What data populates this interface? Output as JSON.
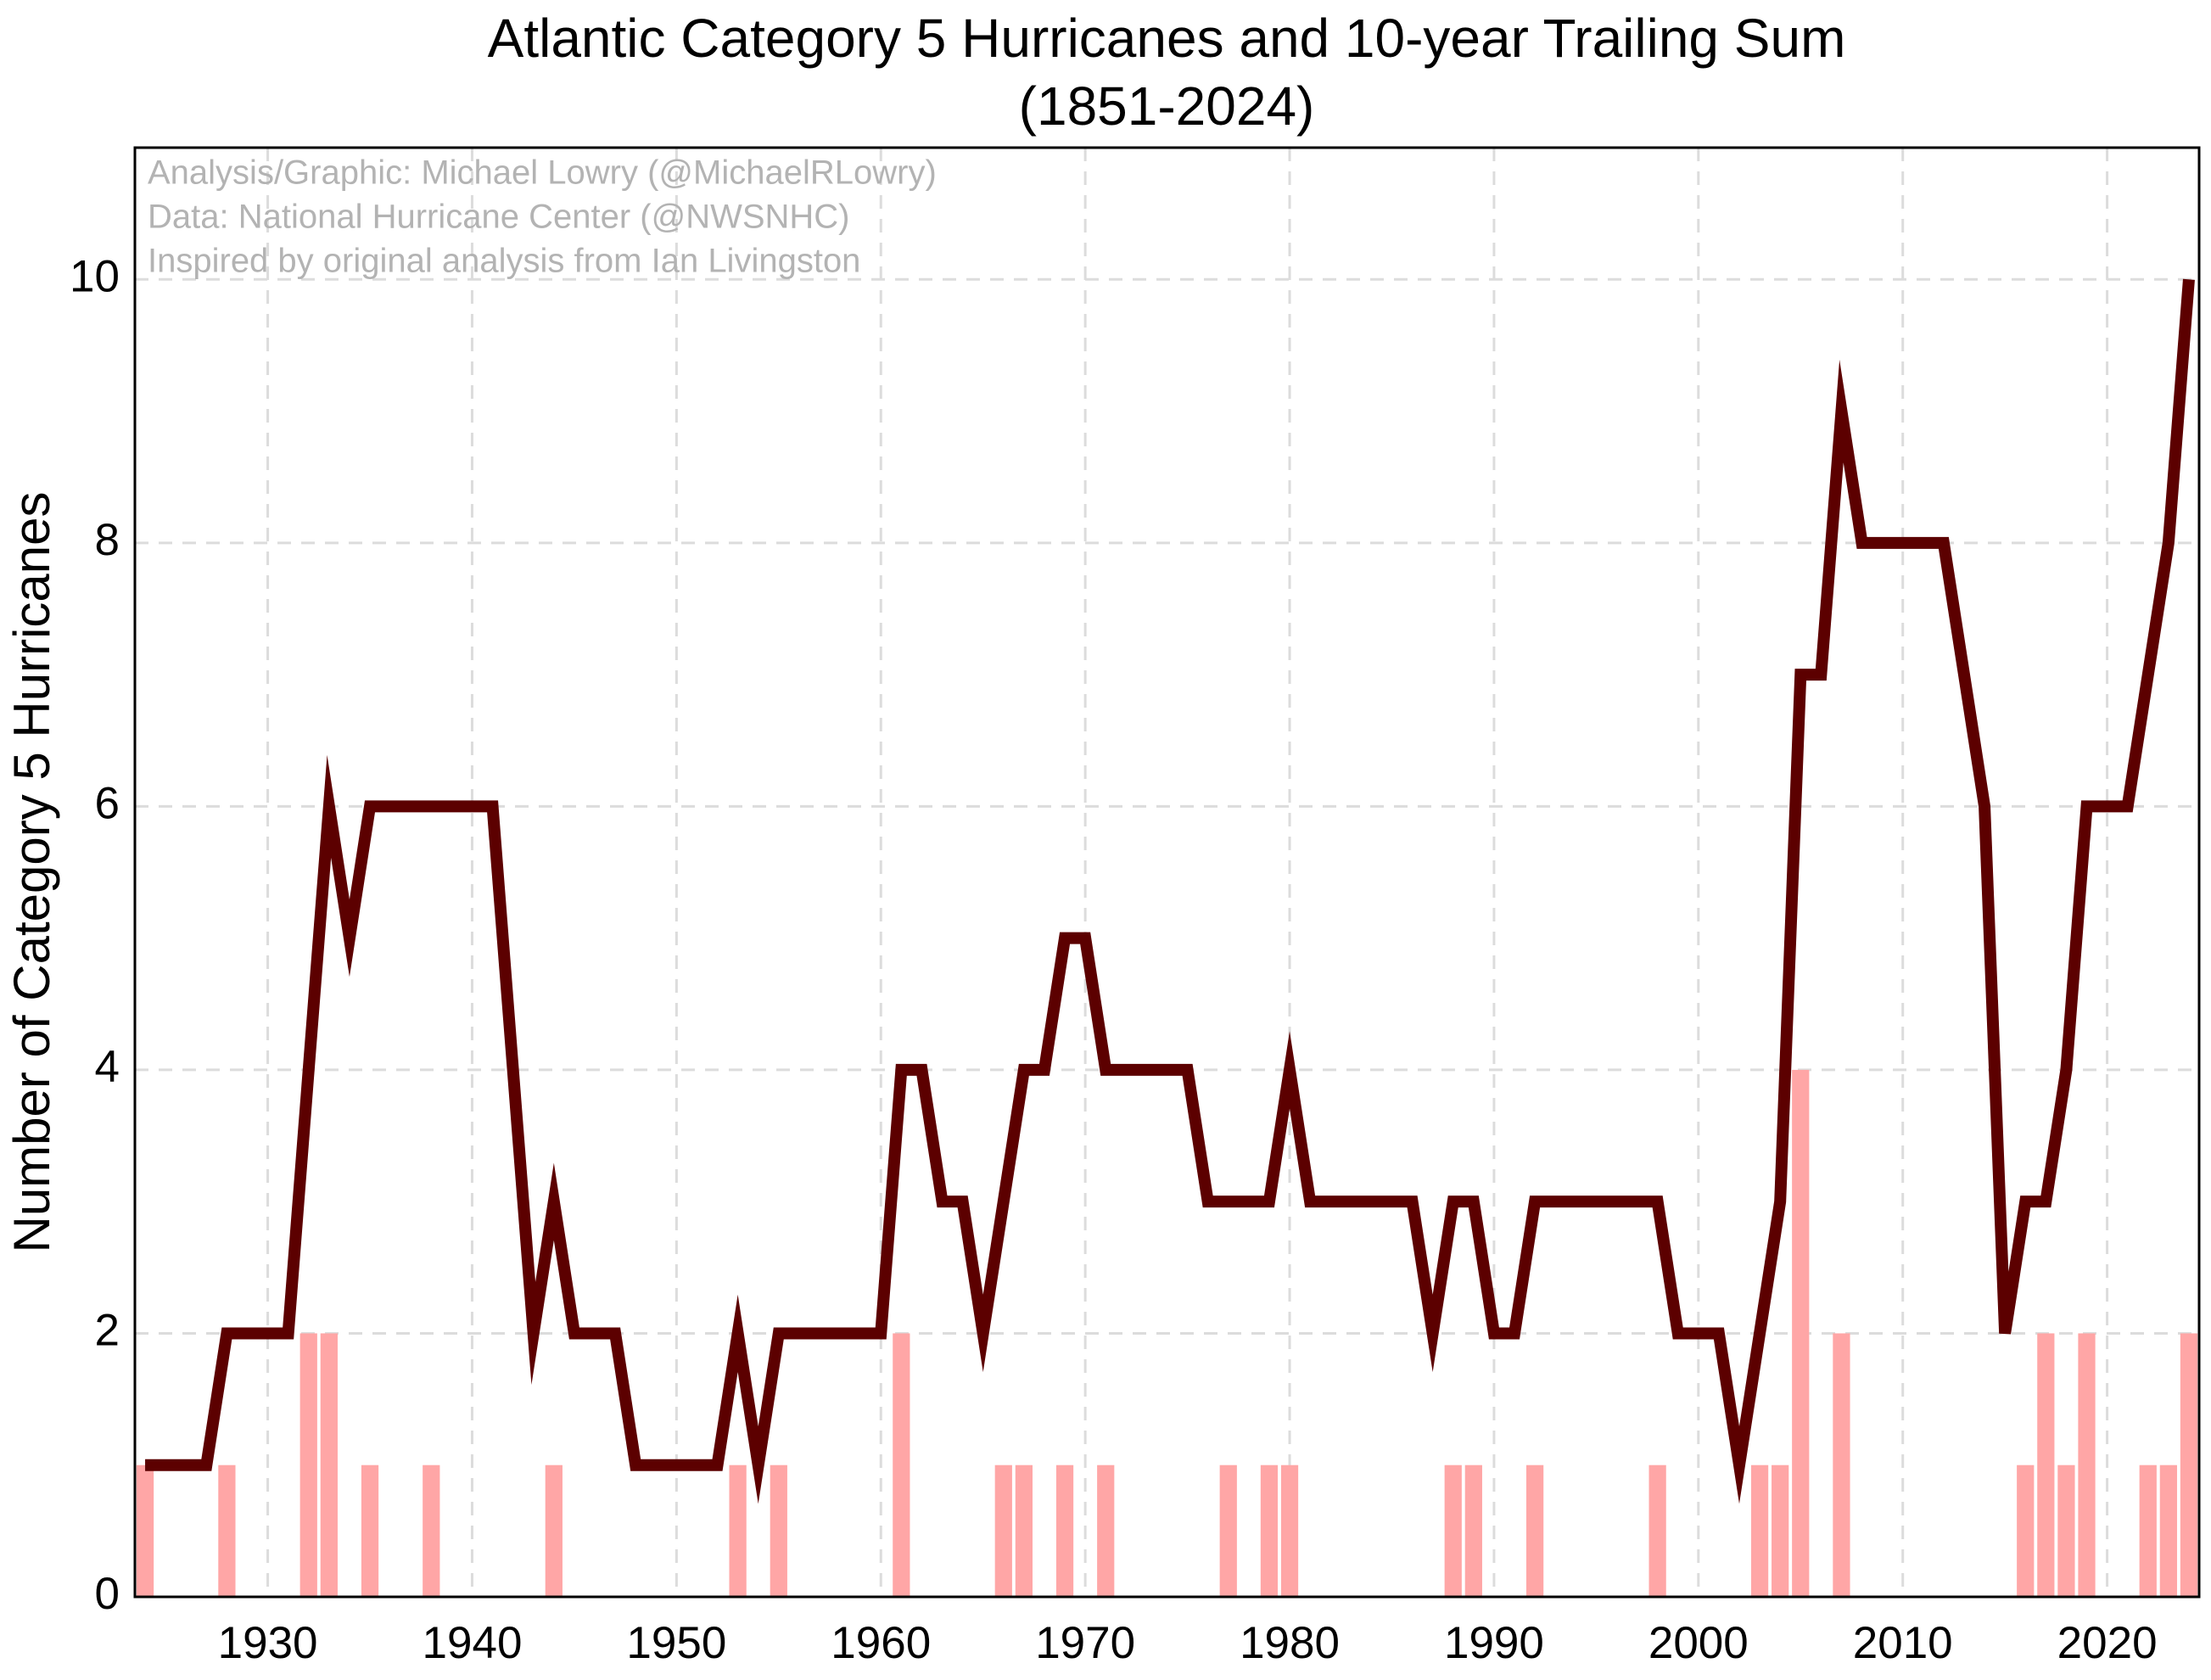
{
  "chart_data": {
    "type": "bar-line",
    "title": "Atlantic Category 5 Hurricanes and 10-year Trailing Sum",
    "subtitle": "(1851-2024)",
    "ylabel": "Number of Category 5 Hurricanes",
    "annotations": [
      "Analysis/Graphic: Michael Lowry (@MichaelRLowry)",
      "Data: National Hurricane Center (@NWSNHC)",
      "Inspired by original analysis from Ian Livingston"
    ],
    "x": [
      1924,
      1925,
      1926,
      1927,
      1928,
      1929,
      1930,
      1931,
      1932,
      1933,
      1934,
      1935,
      1936,
      1937,
      1938,
      1939,
      1940,
      1941,
      1942,
      1943,
      1944,
      1945,
      1946,
      1947,
      1948,
      1949,
      1950,
      1951,
      1952,
      1953,
      1954,
      1955,
      1956,
      1957,
      1958,
      1959,
      1960,
      1961,
      1962,
      1963,
      1964,
      1965,
      1966,
      1967,
      1968,
      1969,
      1970,
      1971,
      1972,
      1973,
      1974,
      1975,
      1976,
      1977,
      1978,
      1979,
      1980,
      1981,
      1982,
      1983,
      1984,
      1985,
      1986,
      1987,
      1988,
      1989,
      1990,
      1991,
      1992,
      1993,
      1994,
      1995,
      1996,
      1997,
      1998,
      1999,
      2000,
      2001,
      2002,
      2003,
      2004,
      2005,
      2006,
      2007,
      2008,
      2009,
      2010,
      2011,
      2012,
      2013,
      2014,
      2015,
      2016,
      2017,
      2018,
      2019,
      2020,
      2021,
      2022,
      2023,
      2024
    ],
    "series": [
      {
        "type": "bar",
        "color": "#ffa6a6",
        "values": [
          1,
          0,
          0,
          0,
          1,
          0,
          0,
          0,
          2,
          2,
          0,
          1,
          0,
          0,
          1,
          0,
          0,
          0,
          0,
          0,
          1,
          0,
          0,
          0,
          0,
          0,
          0,
          0,
          0,
          1,
          0,
          1,
          0,
          0,
          0,
          0,
          0,
          2,
          0,
          0,
          0,
          0,
          1,
          1,
          0,
          1,
          0,
          1,
          0,
          0,
          0,
          0,
          0,
          1,
          0,
          1,
          1,
          0,
          0,
          0,
          0,
          0,
          0,
          0,
          1,
          1,
          0,
          0,
          1,
          0,
          0,
          0,
          0,
          0,
          1,
          0,
          0,
          0,
          0,
          1,
          1,
          4,
          0,
          2,
          0,
          0,
          0,
          0,
          0,
          0,
          0,
          0,
          1,
          2,
          1,
          2,
          0,
          0,
          1,
          1,
          2
        ]
      },
      {
        "type": "line",
        "color": "#5c0000",
        "values": [
          1,
          1,
          1,
          1,
          2,
          2,
          2,
          2,
          4,
          6,
          5,
          6,
          6,
          6,
          6,
          6,
          6,
          6,
          4,
          2,
          3,
          2,
          2,
          2,
          1,
          1,
          1,
          1,
          1,
          2,
          1,
          2,
          2,
          2,
          2,
          2,
          2,
          4,
          4,
          3,
          3,
          2,
          3,
          4,
          4,
          5,
          5,
          4,
          4,
          4,
          4,
          4,
          3,
          3,
          3,
          3,
          4,
          3,
          3,
          3,
          3,
          3,
          3,
          2,
          3,
          3,
          2,
          2,
          3,
          3,
          3,
          3,
          3,
          3,
          3,
          2,
          2,
          2,
          1,
          2,
          3,
          7,
          7,
          9,
          8,
          8,
          8,
          8,
          8,
          7,
          6,
          2,
          3,
          3,
          4,
          6,
          6,
          6,
          7,
          8,
          10
        ]
      }
    ],
    "xlim": [
      1923.5,
      2024.5
    ],
    "xticks": [
      1930,
      1940,
      1950,
      1960,
      1970,
      1980,
      1990,
      2000,
      2010,
      2020
    ],
    "ylim": [
      0,
      11
    ],
    "yticks": [
      0,
      2,
      4,
      6,
      8,
      10
    ],
    "grid": true
  }
}
